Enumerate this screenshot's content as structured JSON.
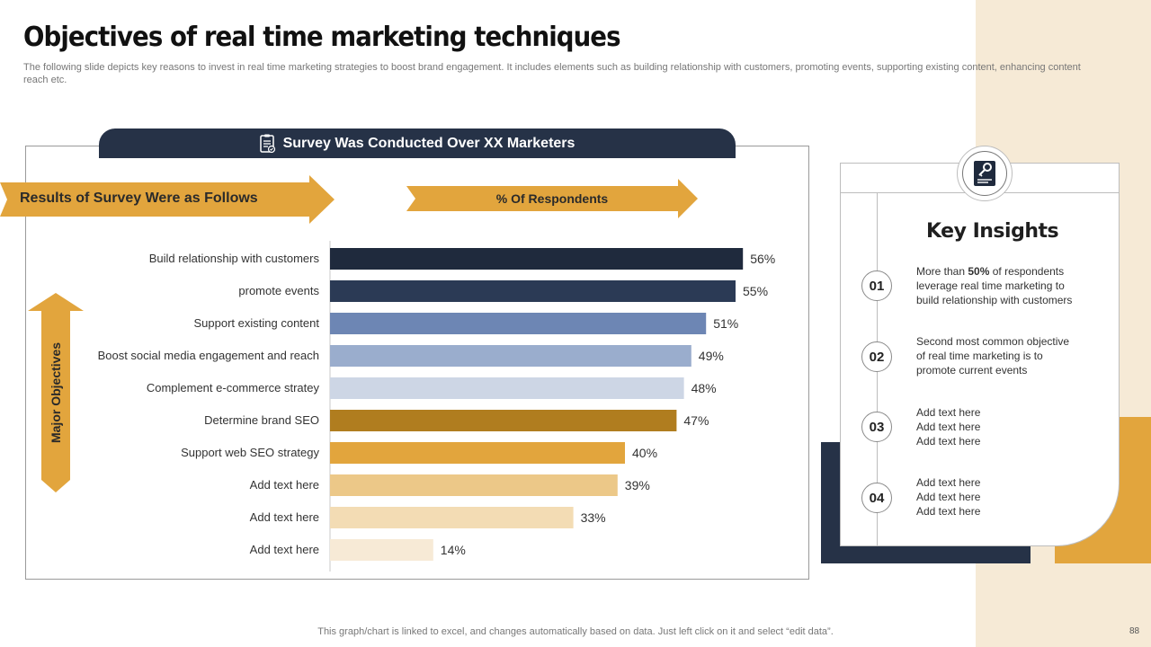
{
  "title": "Objectives of real time marketing techniques",
  "subtitle": "The following slide depicts key reasons to invest in real time marketing strategies to boost brand engagement. It includes elements such as building relationship with customers, promoting events, supporting existing content, enhancing content reach etc.",
  "survey_banner": "Survey Was Conducted Over XX Marketers",
  "results_label": "Results of Survey Were as Follows",
  "respondents_label": "% Of Respondents",
  "major_label": "Major Objectives",
  "chart_data": {
    "type": "bar",
    "orientation": "horizontal",
    "title": "% Of Respondents",
    "ylabel": "Major Objectives",
    "xlim": [
      0,
      100
    ],
    "grid": false,
    "categories": [
      "Build relationship with customers",
      "promote events",
      "Support existing content",
      "Boost social media engagement and reach",
      "Complement e-commerce stratey",
      "Determine brand SEO",
      "Support web SEO strategy",
      "Add text here",
      "Add text here",
      "Add text here"
    ],
    "values": [
      56,
      55,
      51,
      49,
      48,
      47,
      40,
      39,
      33,
      14
    ],
    "value_labels": [
      "56%",
      "55%",
      "51%",
      "49%",
      "48%",
      "47%",
      "40%",
      "39%",
      "33%",
      "14%"
    ],
    "colors": [
      "#1f2a3d",
      "#2b3a55",
      "#6d86b4",
      "#9aadcd",
      "#cdd6e5",
      "#b07d1f",
      "#e2a53d",
      "#ecc888",
      "#f3dcb4",
      "#f7ead6"
    ]
  },
  "insights": {
    "title": "Key Insights",
    "items": [
      {
        "num": "01",
        "pre": "More than ",
        "highlight": "50%",
        "post": "of respondents",
        "line2": "leverage  real time marketing to",
        "line3": "build relationship with customers"
      },
      {
        "num": "02",
        "line1": "Second most common objective",
        "line2": "of real time marketing is to",
        "line3": "promote current events"
      },
      {
        "num": "03",
        "line1": "Add text here",
        "line2": "Add text here",
        "line3": "Add text here"
      },
      {
        "num": "04",
        "line1": "Add text here",
        "line2": "Add text here",
        "line3": "Add text here"
      }
    ]
  },
  "footnote": "This graph/chart is linked to excel,  and changes automatically based on data. Just left click on it and select “edit data”.",
  "page_number": "88"
}
